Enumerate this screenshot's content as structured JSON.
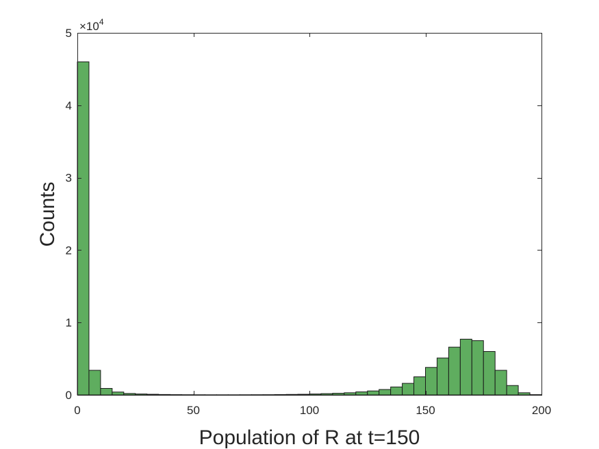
{
  "chart_data": {
    "type": "bar",
    "title": "",
    "xlabel": "Population of R at t=150",
    "ylabel": "Counts",
    "xlim": [
      0,
      200
    ],
    "ylim": [
      0,
      50000
    ],
    "y_exponent_label": "×10",
    "y_exponent_power": "4",
    "xticks": [
      0,
      50,
      100,
      150,
      200
    ],
    "xtick_labels": [
      "0",
      "50",
      "100",
      "150",
      "200"
    ],
    "yticks": [
      0,
      10000,
      20000,
      30000,
      40000,
      50000
    ],
    "ytick_labels": [
      "0",
      "1",
      "2",
      "3",
      "4",
      "5"
    ],
    "grid": false,
    "bar_color": "#5fad5f",
    "edge_color": "#1a1a1a",
    "bins": [
      {
        "x0": 0,
        "x1": 5,
        "count": 46000
      },
      {
        "x0": 5,
        "x1": 10,
        "count": 3400
      },
      {
        "x0": 10,
        "x1": 15,
        "count": 900
      },
      {
        "x0": 15,
        "x1": 20,
        "count": 400
      },
      {
        "x0": 20,
        "x1": 25,
        "count": 200
      },
      {
        "x0": 25,
        "x1": 30,
        "count": 130
      },
      {
        "x0": 30,
        "x1": 35,
        "count": 90
      },
      {
        "x0": 35,
        "x1": 40,
        "count": 60
      },
      {
        "x0": 40,
        "x1": 45,
        "count": 40
      },
      {
        "x0": 45,
        "x1": 50,
        "count": 30
      },
      {
        "x0": 50,
        "x1": 55,
        "count": 25
      },
      {
        "x0": 55,
        "x1": 60,
        "count": 20
      },
      {
        "x0": 60,
        "x1": 65,
        "count": 20
      },
      {
        "x0": 65,
        "x1": 70,
        "count": 20
      },
      {
        "x0": 70,
        "x1": 75,
        "count": 25
      },
      {
        "x0": 75,
        "x1": 80,
        "count": 30
      },
      {
        "x0": 80,
        "x1": 85,
        "count": 35
      },
      {
        "x0": 85,
        "x1": 90,
        "count": 50
      },
      {
        "x0": 90,
        "x1": 95,
        "count": 70
      },
      {
        "x0": 95,
        "x1": 100,
        "count": 90
      },
      {
        "x0": 100,
        "x1": 105,
        "count": 130
      },
      {
        "x0": 105,
        "x1": 110,
        "count": 180
      },
      {
        "x0": 110,
        "x1": 115,
        "count": 230
      },
      {
        "x0": 115,
        "x1": 120,
        "count": 300
      },
      {
        "x0": 120,
        "x1": 125,
        "count": 420
      },
      {
        "x0": 125,
        "x1": 130,
        "count": 550
      },
      {
        "x0": 130,
        "x1": 135,
        "count": 750
      },
      {
        "x0": 135,
        "x1": 140,
        "count": 1100
      },
      {
        "x0": 140,
        "x1": 145,
        "count": 1600
      },
      {
        "x0": 145,
        "x1": 150,
        "count": 2500
      },
      {
        "x0": 150,
        "x1": 155,
        "count": 3800
      },
      {
        "x0": 155,
        "x1": 160,
        "count": 5100
      },
      {
        "x0": 160,
        "x1": 165,
        "count": 6600
      },
      {
        "x0": 165,
        "x1": 170,
        "count": 7700
      },
      {
        "x0": 170,
        "x1": 175,
        "count": 7500
      },
      {
        "x0": 175,
        "x1": 180,
        "count": 6000
      },
      {
        "x0": 180,
        "x1": 185,
        "count": 3400
      },
      {
        "x0": 185,
        "x1": 190,
        "count": 1300
      },
      {
        "x0": 190,
        "x1": 195,
        "count": 300
      },
      {
        "x0": 195,
        "x1": 200,
        "count": 40
      }
    ]
  }
}
